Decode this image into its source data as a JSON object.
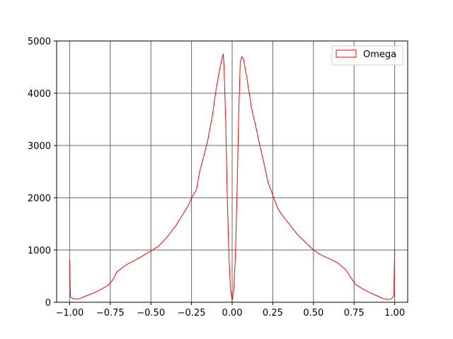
{
  "chart_data": {
    "type": "line",
    "style": "histogram-step",
    "title": "",
    "xlabel": "",
    "ylabel": "",
    "xlim": [
      -1.08,
      1.08
    ],
    "ylim": [
      0,
      5000
    ],
    "grid": true,
    "legend_position": "top-right",
    "x_ticks": [
      -1.0,
      -0.75,
      -0.5,
      -0.25,
      0.0,
      0.25,
      0.5,
      0.75,
      1.0
    ],
    "x_tick_labels": [
      "−1.00",
      "−0.75",
      "−0.50",
      "−0.25",
      "0.00",
      "0.25",
      "0.50",
      "0.75",
      "1.00"
    ],
    "y_ticks": [
      0,
      1000,
      2000,
      3000,
      4000,
      5000
    ],
    "y_tick_labels": [
      "0",
      "1000",
      "2000",
      "3000",
      "4000",
      "5000"
    ],
    "series": [
      {
        "name": "Omega",
        "color": "#ff0000",
        "points": [
          [
            -1.0,
            800
          ],
          [
            -0.995,
            100
          ],
          [
            -0.98,
            70
          ],
          [
            -0.95,
            60
          ],
          [
            -0.93,
            80
          ],
          [
            -0.9,
            120
          ],
          [
            -0.85,
            180
          ],
          [
            -0.8,
            260
          ],
          [
            -0.76,
            330
          ],
          [
            -0.73,
            450
          ],
          [
            -0.71,
            580
          ],
          [
            -0.68,
            650
          ],
          [
            -0.65,
            720
          ],
          [
            -0.6,
            800
          ],
          [
            -0.55,
            890
          ],
          [
            -0.5,
            980
          ],
          [
            -0.45,
            1080
          ],
          [
            -0.4,
            1250
          ],
          [
            -0.35,
            1450
          ],
          [
            -0.3,
            1700
          ],
          [
            -0.27,
            1850
          ],
          [
            -0.25,
            2000
          ],
          [
            -0.22,
            2150
          ],
          [
            -0.2,
            2500
          ],
          [
            -0.17,
            2850
          ],
          [
            -0.15,
            3100
          ],
          [
            -0.12,
            3600
          ],
          [
            -0.1,
            4050
          ],
          [
            -0.08,
            4400
          ],
          [
            -0.06,
            4700
          ],
          [
            -0.055,
            4750
          ],
          [
            -0.05,
            4500
          ],
          [
            -0.04,
            3500
          ],
          [
            -0.03,
            2000
          ],
          [
            -0.02,
            900
          ],
          [
            -0.01,
            250
          ],
          [
            0.0,
            30
          ],
          [
            0.01,
            250
          ],
          [
            0.02,
            900
          ],
          [
            0.03,
            2100
          ],
          [
            0.04,
            3600
          ],
          [
            0.05,
            4600
          ],
          [
            0.06,
            4700
          ],
          [
            0.07,
            4650
          ],
          [
            0.09,
            4300
          ],
          [
            0.12,
            3700
          ],
          [
            0.15,
            3300
          ],
          [
            0.17,
            3000
          ],
          [
            0.2,
            2600
          ],
          [
            0.22,
            2300
          ],
          [
            0.25,
            2050
          ],
          [
            0.28,
            1800
          ],
          [
            0.3,
            1700
          ],
          [
            0.35,
            1500
          ],
          [
            0.4,
            1300
          ],
          [
            0.45,
            1150
          ],
          [
            0.5,
            1000
          ],
          [
            0.55,
            900
          ],
          [
            0.6,
            830
          ],
          [
            0.65,
            750
          ],
          [
            0.7,
            620
          ],
          [
            0.73,
            470
          ],
          [
            0.76,
            340
          ],
          [
            0.8,
            260
          ],
          [
            0.85,
            180
          ],
          [
            0.9,
            110
          ],
          [
            0.93,
            70
          ],
          [
            0.96,
            50
          ],
          [
            0.98,
            70
          ],
          [
            0.995,
            120
          ],
          [
            1.0,
            1020
          ]
        ]
      }
    ]
  },
  "legend": {
    "label": "Omega"
  }
}
